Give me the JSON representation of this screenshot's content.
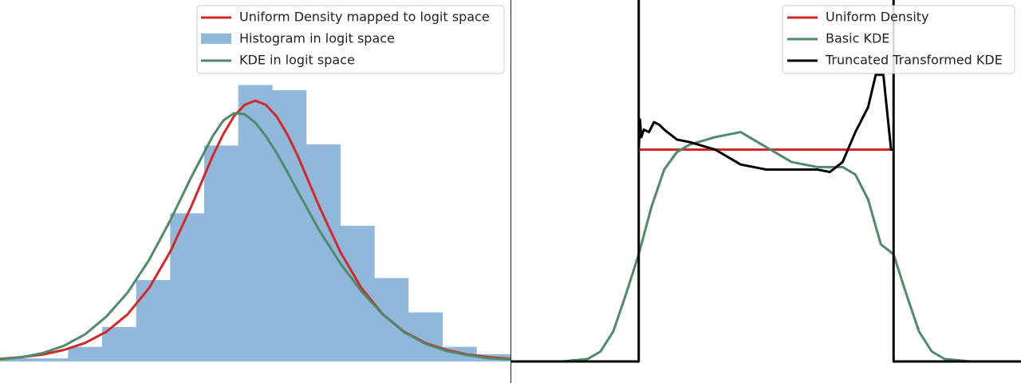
{
  "chart_data": [
    {
      "type": "area",
      "panel": "left",
      "xlim": [
        -6.0,
        6.0
      ],
      "ylim": [
        0.0,
        0.27
      ],
      "grid": false,
      "legend_position": "top-right",
      "axes_visible": false,
      "legend": [
        {
          "label": "Uniform Density mapped to logit space",
          "kind": "line",
          "color": "#d62728"
        },
        {
          "label": "Histogram in logit space",
          "kind": "patch",
          "color": "#8fb8da"
        },
        {
          "label": "KDE in logit space",
          "kind": "line",
          "color": "#4e8a6b"
        }
      ],
      "histogram": {
        "name": "Histogram in logit space",
        "color": "#8fb8da",
        "bin_edges": [
          -6.0,
          -5.2,
          -4.4,
          -3.6,
          -2.8,
          -2.0,
          -1.2,
          -0.4,
          0.4,
          1.2,
          2.0,
          2.8,
          3.6,
          4.4,
          5.2,
          6.0
        ],
        "counts": [
          0.003,
          0.003,
          0.014,
          0.033,
          0.078,
          0.142,
          0.207,
          0.265,
          0.26,
          0.208,
          0.13,
          0.08,
          0.047,
          0.014,
          0.007
        ]
      },
      "series": [
        {
          "name": "Uniform Density mapped to logit space",
          "color": "#d62728",
          "x": [
            -6.0,
            -5.5,
            -5.0,
            -4.5,
            -4.0,
            -3.5,
            -3.0,
            -2.5,
            -2.0,
            -1.5,
            -1.0,
            -0.75,
            -0.5,
            -0.25,
            0.0,
            0.25,
            0.5,
            0.75,
            1.0,
            1.5,
            2.0,
            2.5,
            3.0,
            3.5,
            4.0,
            4.5,
            5.0,
            5.5,
            6.0
          ],
          "y": [
            0.0025,
            0.0041,
            0.0066,
            0.011,
            0.0177,
            0.0285,
            0.0452,
            0.0701,
            0.105,
            0.149,
            0.197,
            0.218,
            0.235,
            0.246,
            0.25,
            0.246,
            0.235,
            0.218,
            0.197,
            0.149,
            0.105,
            0.0701,
            0.0452,
            0.0285,
            0.0177,
            0.011,
            0.0066,
            0.0041,
            0.0025
          ]
        },
        {
          "name": "KDE in logit space",
          "color": "#4e8a6b",
          "x": [
            -6.0,
            -5.5,
            -5.0,
            -4.5,
            -4.0,
            -3.5,
            -3.0,
            -2.5,
            -2.0,
            -1.5,
            -1.0,
            -0.75,
            -0.5,
            -0.25,
            0.0,
            0.25,
            0.5,
            0.75,
            1.0,
            1.5,
            2.0,
            2.5,
            3.0,
            3.5,
            4.0,
            4.5,
            5.0,
            5.5,
            6.0
          ],
          "y": [
            0.002,
            0.004,
            0.008,
            0.015,
            0.026,
            0.043,
            0.066,
            0.097,
            0.135,
            0.177,
            0.216,
            0.231,
            0.238,
            0.237,
            0.229,
            0.216,
            0.2,
            0.182,
            0.163,
            0.126,
            0.094,
            0.067,
            0.045,
            0.028,
            0.017,
            0.01,
            0.006,
            0.003,
            0.002
          ]
        }
      ]
    },
    {
      "type": "line",
      "panel": "right",
      "xlim": [
        -0.5,
        1.5
      ],
      "ylim": [
        0.0,
        1.45
      ],
      "grid": false,
      "legend_position": "top-right",
      "axes_visible": false,
      "legend": [
        {
          "label": "Uniform Density",
          "kind": "line",
          "color": "#d62728"
        },
        {
          "label": "Basic KDE",
          "kind": "line",
          "color": "#4e8a6b"
        },
        {
          "label": "Truncated Transformed KDE",
          "kind": "line",
          "color": "#000000"
        }
      ],
      "series": [
        {
          "name": "Uniform Density",
          "color": "#d62728",
          "x": [
            0.0,
            1.0
          ],
          "y": [
            0.85,
            0.85
          ]
        },
        {
          "name": "Basic KDE",
          "color": "#4e8a6b",
          "x": [
            -0.5,
            -0.3,
            -0.2,
            -0.15,
            -0.1,
            -0.05,
            0.0,
            0.05,
            0.1,
            0.15,
            0.2,
            0.25,
            0.3,
            0.4,
            0.5,
            0.6,
            0.7,
            0.75,
            0.8,
            0.85,
            0.9,
            0.95,
            1.0,
            1.05,
            1.1,
            1.15,
            1.2,
            1.3,
            1.5
          ],
          "y": [
            0.0,
            0.0,
            0.01,
            0.04,
            0.12,
            0.27,
            0.43,
            0.62,
            0.77,
            0.84,
            0.87,
            0.885,
            0.9,
            0.92,
            0.86,
            0.8,
            0.78,
            0.78,
            0.78,
            0.75,
            0.65,
            0.47,
            0.43,
            0.27,
            0.12,
            0.04,
            0.01,
            0.0,
            0.0
          ]
        },
        {
          "name": "Truncated Transformed KDE",
          "color": "#000000",
          "x": [
            -0.5,
            0.0,
            0.0,
            0.0,
            0.005,
            0.01,
            0.02,
            0.04,
            0.06,
            0.08,
            0.1,
            0.15,
            0.2,
            0.3,
            0.4,
            0.5,
            0.6,
            0.7,
            0.75,
            0.8,
            0.85,
            0.9,
            0.93,
            0.96,
            0.98,
            0.99,
            1.0,
            1.0,
            1.0,
            1.5
          ],
          "y": [
            0.0,
            0.0,
            1.45,
            0.85,
            0.97,
            0.9,
            0.93,
            0.92,
            0.96,
            0.95,
            0.93,
            0.89,
            0.88,
            0.85,
            0.79,
            0.77,
            0.77,
            0.77,
            0.76,
            0.8,
            0.92,
            1.02,
            1.15,
            1.15,
            0.95,
            0.85,
            0.85,
            1.45,
            0.0,
            0.0
          ]
        }
      ]
    }
  ]
}
